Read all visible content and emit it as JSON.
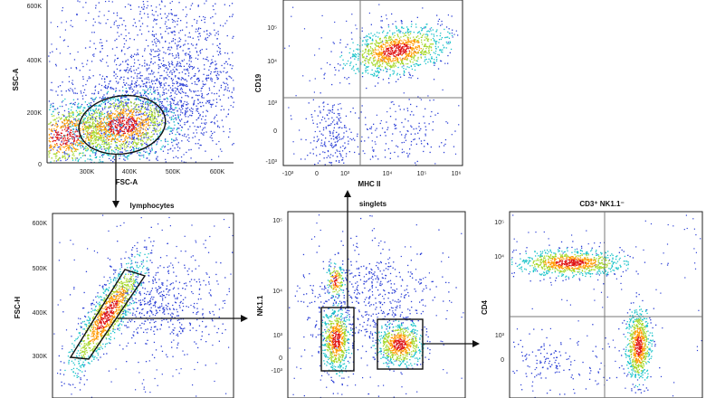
{
  "chart_data": [
    {
      "type": "scatter",
      "id": "p1",
      "title": "",
      "xlabel": "FSC-A",
      "ylabel": "SSC-A",
      "x_ticks": [
        "300K",
        "400K",
        "500K",
        "600K"
      ],
      "y_ticks": [
        "0",
        "200K",
        "400K",
        "600K"
      ],
      "xlim": [
        200000,
        650000
      ],
      "ylim": [
        0,
        650000
      ],
      "gate": {
        "type": "ellipse",
        "center": [
          395000,
          150000
        ],
        "radii": [
          100000,
          80000
        ]
      },
      "clusters": [
        {
          "center": [
            390000,
            140000
          ],
          "spread": [
            60000,
            40000
          ],
          "density": "high"
        },
        {
          "center": [
            230000,
            60000
          ],
          "spread": [
            40000,
            30000
          ],
          "density": "high"
        },
        {
          "center": [
            480000,
            330000
          ],
          "spread": [
            120000,
            180000
          ],
          "density": "low"
        }
      ]
    },
    {
      "type": "scatter",
      "id": "p2",
      "title": "",
      "xlabel": "MHC II",
      "ylabel": "CD19",
      "x_ticks": [
        "-10³",
        "0",
        "10³",
        "10⁴",
        "10⁵",
        "10⁶"
      ],
      "y_ticks": [
        "-10³",
        "0",
        "10³",
        "10⁴",
        "10⁵"
      ],
      "quadrant": {
        "x": "10³+",
        "y": "10³+"
      },
      "clusters": [
        {
          "label": "MHC II+ CD19+",
          "density": "high"
        },
        {
          "label": "MHC II- CD19-",
          "density": "low"
        }
      ]
    },
    {
      "type": "scatter",
      "id": "p3",
      "title": "lymphocytes",
      "xlabel": "",
      "ylabel": "FSC-H",
      "y_ticks": [
        "300K",
        "400K",
        "500K",
        "600K"
      ],
      "ylim": [
        250000,
        650000
      ],
      "gate": {
        "type": "polygon",
        "label": "singlets diagonal"
      },
      "clusters": [
        {
          "label": "singlets",
          "density": "high"
        }
      ]
    },
    {
      "type": "scatter",
      "id": "p4",
      "title": "singlets",
      "xlabel": "",
      "ylabel": "NK1.1",
      "y_ticks": [
        "-10³",
        "0",
        "10³",
        "10⁴",
        "10⁵"
      ],
      "gates": [
        {
          "type": "rectangle",
          "label": "left gate"
        },
        {
          "type": "rectangle",
          "label": "right gate"
        }
      ]
    },
    {
      "type": "scatter",
      "id": "p5",
      "title": "CD3⁺ NK1.1⁻",
      "xlabel": "",
      "ylabel": "CD4",
      "y_ticks": [
        "0",
        "10³",
        "10⁴",
        "10⁵"
      ],
      "quadrant": {
        "x": "mid",
        "y": "10³+"
      },
      "clusters": [
        {
          "label": "CD4+",
          "density": "high"
        },
        {
          "label": "CD4-",
          "density": "high"
        }
      ]
    }
  ],
  "colors": {
    "low": "#2b3fd6",
    "mid": "#19c3c9",
    "midhigh": "#a6d82a",
    "high": "#ff9a00",
    "peak": "#e01515",
    "axis": "#222222",
    "gate": "#111111",
    "quadrant": "#777777"
  }
}
